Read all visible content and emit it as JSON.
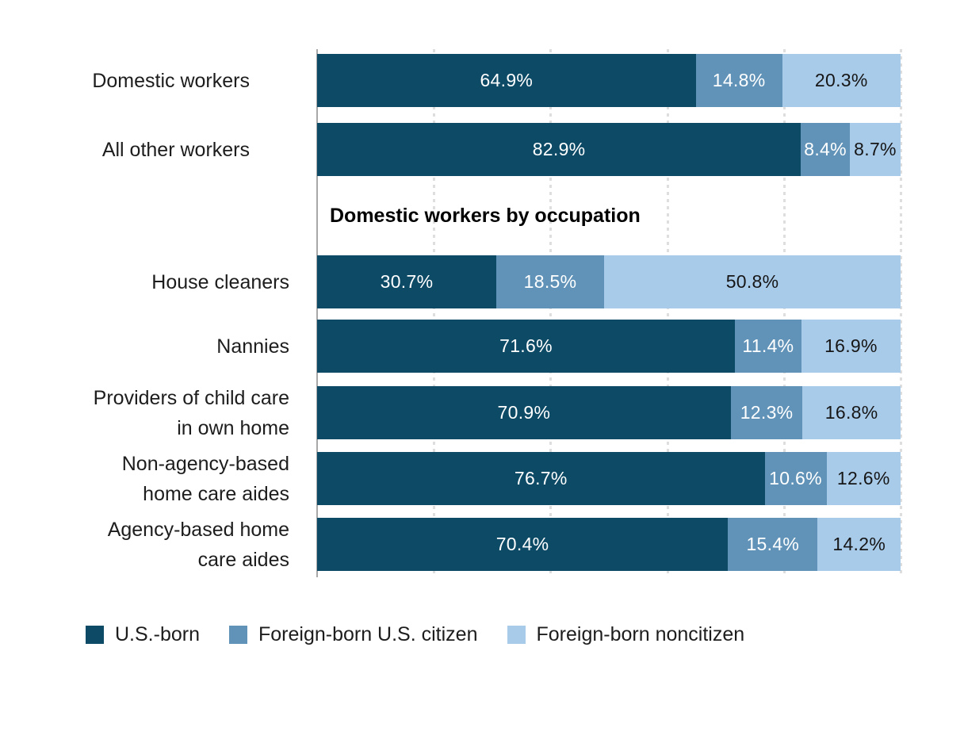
{
  "chart_data": {
    "type": "bar",
    "orientation": "horizontal",
    "stacked": true,
    "unit": "percent",
    "xlim": [
      0,
      100
    ],
    "grid": true,
    "gridlines_percent": [
      20,
      40,
      60,
      80,
      100
    ],
    "section_header": "Domestic workers by occupation",
    "legend_position": "bottom",
    "series": [
      {
        "name": "U.S.-born",
        "color": "#0d4a66"
      },
      {
        "name": "Foreign-born U.S. citizen",
        "color": "#6193b8"
      },
      {
        "name": "Foreign-born noncitizen",
        "color": "#a9cbea"
      }
    ],
    "rows": [
      {
        "label": "Domestic workers",
        "group": "overall",
        "values": [
          64.9,
          14.8,
          20.3
        ],
        "display": [
          "64.9%",
          "14.8%",
          "20.3%"
        ]
      },
      {
        "label": "All other workers",
        "group": "overall",
        "values": [
          82.9,
          8.4,
          8.7
        ],
        "display": [
          "82.9%",
          "8.4%",
          "8.7%"
        ]
      },
      {
        "label": "House cleaners",
        "group": "occupation",
        "values": [
          30.7,
          18.5,
          50.8
        ],
        "display": [
          "30.7%",
          "18.5%",
          "50.8%"
        ]
      },
      {
        "label": "Nannies",
        "group": "occupation",
        "values": [
          71.6,
          11.4,
          16.9
        ],
        "display": [
          "71.6%",
          "11.4%",
          "16.9%"
        ]
      },
      {
        "label": "Providers of child care\nin own home",
        "group": "occupation",
        "values": [
          70.9,
          12.3,
          16.8
        ],
        "display": [
          "70.9%",
          "12.3%",
          "16.8%"
        ]
      },
      {
        "label": "Non-agency-based\nhome care aides",
        "group": "occupation",
        "values": [
          76.7,
          10.6,
          12.6
        ],
        "display": [
          "76.7%",
          "10.6%",
          "12.6%"
        ]
      },
      {
        "label": "Agency-based home\ncare aides",
        "group": "occupation",
        "values": [
          70.4,
          15.4,
          14.2
        ],
        "display": [
          "70.4%",
          "15.4%",
          "14.2%"
        ]
      }
    ],
    "colors": {
      "gridline": "#dedede",
      "axis": "#a8a8a8",
      "text": "#1d1d1d"
    }
  }
}
